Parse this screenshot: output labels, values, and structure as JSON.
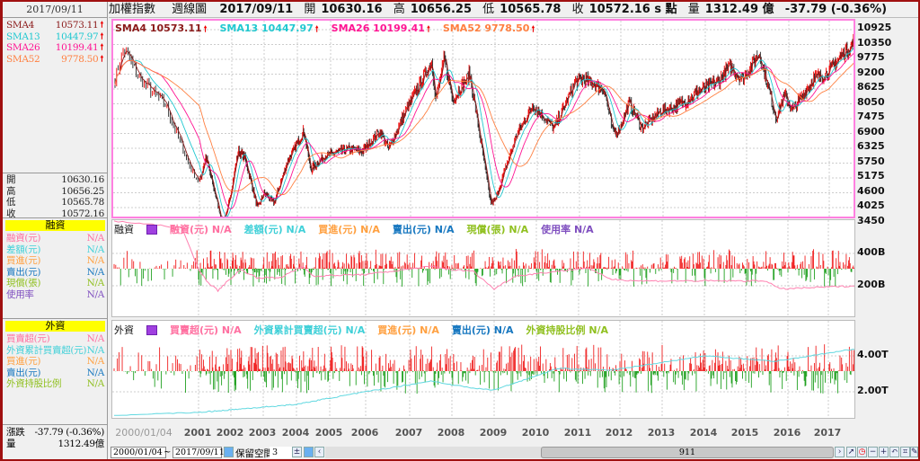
{
  "left": {
    "date": "2017/09/11",
    "sma": [
      {
        "name": "SMA4",
        "value": "10573.11",
        "color": "#8b1a1a"
      },
      {
        "name": "SMA13",
        "value": "10447.97",
        "color": "#20c8d0"
      },
      {
        "name": "SMA26",
        "value": "10199.41",
        "color": "#ff1493"
      },
      {
        "name": "SMA52",
        "value": "9778.50",
        "color": "#ff7f40"
      }
    ],
    "ohlc": [
      {
        "label": "開",
        "value": "10630.16"
      },
      {
        "label": "高",
        "value": "10656.25"
      },
      {
        "label": "低",
        "value": "10565.78"
      },
      {
        "label": "收",
        "value": "10572.16"
      }
    ],
    "margin": {
      "title": "融資",
      "rows": [
        {
          "label": "融資(元)",
          "value": "N/A",
          "color": "#ff6fa0"
        },
        {
          "label": "差額(元)",
          "value": "N/A",
          "color": "#40d0d8"
        },
        {
          "label": "買進(元)",
          "value": "N/A",
          "color": "#ffa040"
        },
        {
          "label": "賣出(元)",
          "value": "N/A",
          "color": "#1878c0"
        },
        {
          "label": "現償(張)",
          "value": "N/A",
          "color": "#90c020"
        },
        {
          "label": "使用率",
          "value": "N/A",
          "color": "#8050c0"
        }
      ]
    },
    "foreign": {
      "title": "外資",
      "rows": [
        {
          "label": "買賣超(元)",
          "value": "N/A",
          "color": "#ff6fa0"
        },
        {
          "label": "外資累計買賣超(元)",
          "value": "N/A",
          "color": "#40d0d8"
        },
        {
          "label": "買進(元)",
          "value": "N/A",
          "color": "#ffa040"
        },
        {
          "label": "賣出(元)",
          "value": "N/A",
          "color": "#1878c0"
        },
        {
          "label": "外資持股比例",
          "value": "N/A",
          "color": "#90c020"
        }
      ]
    },
    "change_label": "漲跌",
    "change": "-37.79 (-0.36%)",
    "volume_label": "量",
    "volume": "1312.49億"
  },
  "top": {
    "name": "加權指數",
    "period": "週線圖",
    "date": "2017/09/11",
    "open_label": "開",
    "open": "10630.16",
    "high_label": "高",
    "high": "10656.25",
    "low_label": "低",
    "low": "10565.78",
    "close_label": "收",
    "close": "10572.16 s 點",
    "vol_label": "量",
    "vol": "1312.49 億",
    "change": "-37.79 (-0.36%)"
  },
  "panels": {
    "price_header": [
      {
        "text": "SMA4 10573.11",
        "color": "#8b1a1a"
      },
      {
        "text": "SMA13 10447.97",
        "color": "#20c8d0"
      },
      {
        "text": "SMA26 10199.41",
        "color": "#ff1493"
      },
      {
        "text": "SMA52 9778.50",
        "color": "#ff7f40"
      }
    ],
    "margin_title": "融資",
    "margin_header": [
      {
        "text": "融資(元) N/A",
        "color": "#ff6fa0"
      },
      {
        "text": "差額(元) N/A",
        "color": "#40d0d8"
      },
      {
        "text": "買進(元) N/A",
        "color": "#ffa040"
      },
      {
        "text": "賣出(元) N/A",
        "color": "#1878c0"
      },
      {
        "text": "現償(張) N/A",
        "color": "#90c020"
      },
      {
        "text": "使用率 N/A",
        "color": "#8050c0"
      }
    ],
    "foreign_title": "外資",
    "foreign_header": [
      {
        "text": "買賣超(元) N/A",
        "color": "#ff6fa0"
      },
      {
        "text": "外資累計買賣超(元) N/A",
        "color": "#40d0d8"
      },
      {
        "text": "買進(元) N/A",
        "color": "#ffa040"
      },
      {
        "text": "賣出(元) N/A",
        "color": "#1878c0"
      },
      {
        "text": "外資持股比例 N/A",
        "color": "#90c020"
      }
    ]
  },
  "chart_data": {
    "type": "line",
    "title": "加權指數 週線圖",
    "price_axis": [
      "10925",
      "10350",
      "9775",
      "9200",
      "8625",
      "8050",
      "7475",
      "6900",
      "6325",
      "5750",
      "5175",
      "4600",
      "4025",
      "3450"
    ],
    "ylim": [
      3450,
      10925
    ],
    "x_start_label": "2000/01/04",
    "years": [
      "2001",
      "2002",
      "2003",
      "2004",
      "2005",
      "2006",
      "2007",
      "2008",
      "2009",
      "2010",
      "2011",
      "2012",
      "2013",
      "2014",
      "2015",
      "2016",
      "2017"
    ],
    "price_keypoints": [
      [
        2000.0,
        9000
      ],
      [
        2000.1,
        10200
      ],
      [
        2000.3,
        9000
      ],
      [
        2000.6,
        8000
      ],
      [
        2000.9,
        5500
      ],
      [
        2001.0,
        5000
      ],
      [
        2001.2,
        6000
      ],
      [
        2001.7,
        3500
      ],
      [
        2001.85,
        3800
      ],
      [
        2002.2,
        6200
      ],
      [
        2002.4,
        6000
      ],
      [
        2002.8,
        4000
      ],
      [
        2003.0,
        4600
      ],
      [
        2003.3,
        4200
      ],
      [
        2003.7,
        5800
      ],
      [
        2004.2,
        7000
      ],
      [
        2004.4,
        5500
      ],
      [
        2004.8,
        6000
      ],
      [
        2005.5,
        6300
      ],
      [
        2005.9,
        6200
      ],
      [
        2006.3,
        7000
      ],
      [
        2006.5,
        6300
      ],
      [
        2006.9,
        7800
      ],
      [
        2007.5,
        9700
      ],
      [
        2007.6,
        8200
      ],
      [
        2007.8,
        9800
      ],
      [
        2008.0,
        8200
      ],
      [
        2008.4,
        9200
      ],
      [
        2008.9,
        4200
      ],
      [
        2009.0,
        4300
      ],
      [
        2009.5,
        6800
      ],
      [
        2009.9,
        8000
      ],
      [
        2010.4,
        7100
      ],
      [
        2010.9,
        8900
      ],
      [
        2011.1,
        9000
      ],
      [
        2011.6,
        8600
      ],
      [
        2011.8,
        7000
      ],
      [
        2011.95,
        7000
      ],
      [
        2012.2,
        8100
      ],
      [
        2012.5,
        7100
      ],
      [
        2012.9,
        7700
      ],
      [
        2013.5,
        8100
      ],
      [
        2013.9,
        8600
      ],
      [
        2014.3,
        8900
      ],
      [
        2014.6,
        9500
      ],
      [
        2014.9,
        9000
      ],
      [
        2015.3,
        10000
      ],
      [
        2015.7,
        7500
      ],
      [
        2015.9,
        8400
      ],
      [
        2016.1,
        7800
      ],
      [
        2016.6,
        9000
      ],
      [
        2016.9,
        9200
      ],
      [
        2017.4,
        10100
      ],
      [
        2017.7,
        10600
      ]
    ],
    "margin_axis": [
      "400B",
      "200B"
    ],
    "margin_balance_B": [
      [
        2000.0,
        600
      ],
      [
        2000.8,
        560
      ],
      [
        2001.0,
        300
      ],
      [
        2001.3,
        220
      ],
      [
        2001.6,
        170
      ],
      [
        2001.8,
        210
      ],
      [
        2002.3,
        300
      ],
      [
        2002.8,
        250
      ],
      [
        2003.5,
        250
      ],
      [
        2004.2,
        320
      ],
      [
        2004.5,
        260
      ],
      [
        2006.0,
        270
      ],
      [
        2007.5,
        320
      ],
      [
        2008.0,
        300
      ],
      [
        2008.5,
        290
      ],
      [
        2009.0,
        180
      ],
      [
        2009.5,
        260
      ],
      [
        2010.5,
        290
      ],
      [
        2011.2,
        310
      ],
      [
        2011.8,
        240
      ],
      [
        2012.5,
        230
      ],
      [
        2015.5,
        230
      ],
      [
        2015.8,
        180
      ],
      [
        2017.7,
        200
      ]
    ],
    "foreign_axis": [
      "4.00T",
      "2.00T"
    ],
    "foreign_cumulative_T": [
      [
        2000.0,
        0.7
      ],
      [
        2004.0,
        1.3
      ],
      [
        2006.0,
        2.0
      ],
      [
        2007.5,
        2.6
      ],
      [
        2008.5,
        2.2
      ],
      [
        2009.0,
        2.1
      ],
      [
        2010.5,
        3.3
      ],
      [
        2011.8,
        3.2
      ],
      [
        2014.0,
        4.0
      ],
      [
        2015.7,
        3.7
      ],
      [
        2017.7,
        4.4
      ]
    ]
  },
  "controls": {
    "start": "2000/01/04",
    "tilde": "~",
    "end": "2017/09/11",
    "reserve_label": "保留空間",
    "reserve_value": "3",
    "scroll_value": "911"
  }
}
